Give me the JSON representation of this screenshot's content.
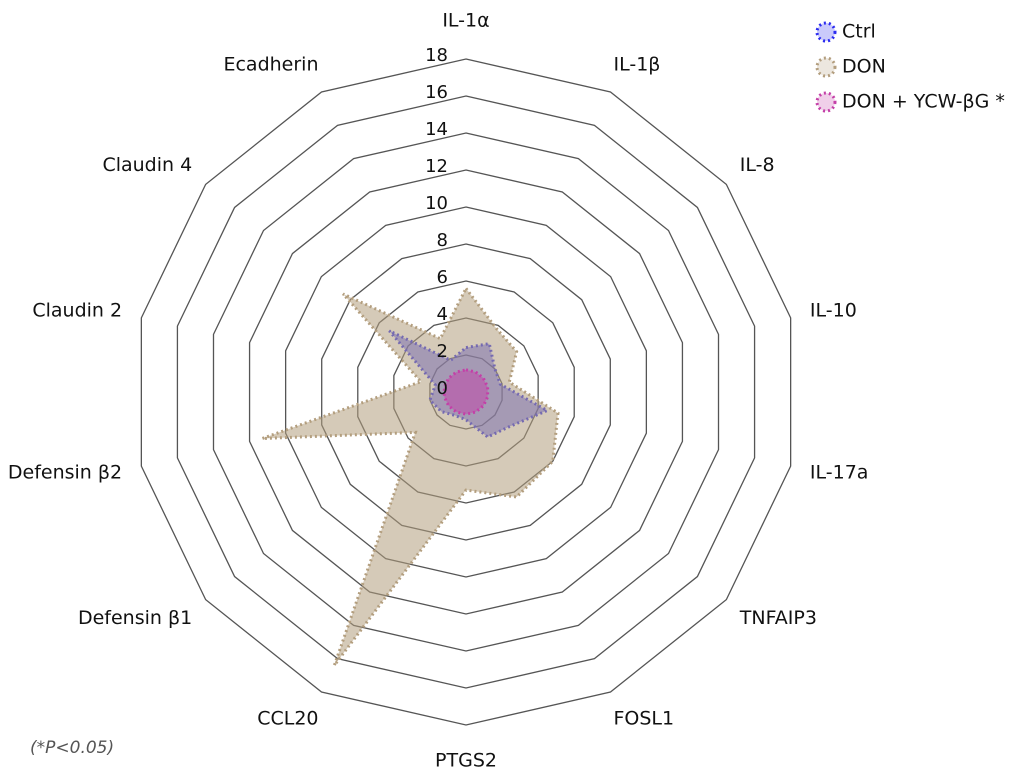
{
  "chart_data": {
    "type": "radar",
    "categories": [
      "IL-1α",
      "IL-1β",
      "IL-8",
      "IL-10",
      "IL-17a",
      "TNFAIP3",
      "FOSL1",
      "PTGS2",
      "CCL20",
      "Defensin β1",
      "Defensin β2",
      "Claudin 2",
      "Claudin 4",
      "Ecadherin"
    ],
    "series": [
      {
        "name": "Ctrl",
        "color": "#2b2bf0",
        "values": [
          2.4,
          2.9,
          2.0,
          1.9,
          4.5,
          3.0,
          2.7,
          1.5,
          1.4,
          1.7,
          2.0,
          1.7,
          5.3,
          1.9
        ]
      },
      {
        "name": "DON",
        "color": "#b39e7e",
        "values": [
          5.6,
          3.8,
          3.5,
          2.4,
          5.1,
          6.0,
          6.3,
          5.3,
          16.4,
          3.5,
          11.3,
          2.5,
          8.5,
          3.2
        ]
      },
      {
        "name": "DON + YCW-βG *",
        "color": "#c43fa8",
        "values": [
          1.2,
          1.2,
          1.2,
          1.2,
          1.2,
          1.2,
          1.2,
          1.2,
          1.2,
          1.2,
          1.2,
          1.2,
          1.2,
          1.2
        ]
      }
    ],
    "ylim": [
      0,
      18
    ],
    "yticks": [
      0,
      2,
      4,
      6,
      8,
      10,
      12,
      14,
      16,
      18
    ],
    "grid": true,
    "legend": "top-right",
    "footnote": "(*P<0.05)"
  }
}
